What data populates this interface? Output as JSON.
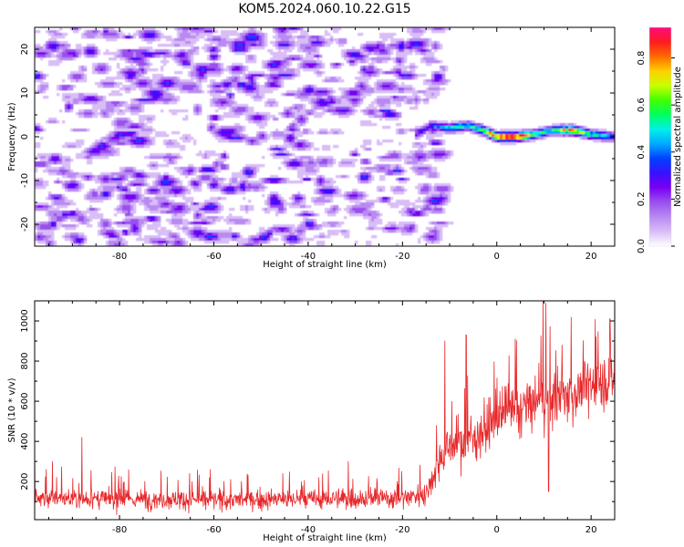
{
  "title": "KOM5.2024.060.10.22.G15",
  "colors": {
    "snr_line": "#e8282b",
    "axis": "#000000",
    "colormap": [
      "#ffffff",
      "#d9bdf7",
      "#b98af2",
      "#9a50ee",
      "#7a00f2",
      "#3a10ff",
      "#0040ff",
      "#00a8ff",
      "#00f0e8",
      "#00ff60",
      "#40ff00",
      "#c8ff00",
      "#ffd000",
      "#ff6a00",
      "#ff1a20",
      "#ff0a80"
    ]
  },
  "chart_data": [
    {
      "type": "heatmap",
      "xlabel": "Height of straight line (km)",
      "ylabel": "Frequency (Hz)",
      "xlim": [
        -98,
        25
      ],
      "ylim": [
        -25,
        25
      ],
      "xticks": [
        -80,
        -60,
        -40,
        -20,
        0,
        20
      ],
      "yticks": [
        -20,
        -10,
        0,
        10,
        20
      ],
      "colorbar": {
        "label": "Normalized spectral amplitude",
        "range": [
          0.0,
          0.93
        ],
        "ticks": [
          0.0,
          0.2,
          0.4,
          0.6,
          0.8
        ]
      },
      "noise_region_km": [
        -98,
        -13
      ],
      "signal_trace": {
        "x": [
          -17,
          -14,
          -10,
          -6,
          -3,
          0,
          4,
          8,
          12,
          16,
          20,
          25
        ],
        "frequency_hz": [
          0.5,
          2.5,
          2.0,
          2.5,
          1.5,
          0.0,
          0.0,
          0.5,
          1.5,
          1.5,
          0.5,
          0.0
        ],
        "amplitude": [
          0.25,
          0.35,
          0.45,
          0.55,
          0.6,
          0.85,
          0.9,
          0.6,
          0.55,
          0.8,
          0.5,
          0.4
        ]
      }
    },
    {
      "type": "line",
      "xlabel": "Height of straight line (km)",
      "ylabel": "SNR (10 * v/v)",
      "xlim": [
        -98,
        25
      ],
      "ylim": [
        10,
        1100
      ],
      "xticks": [
        -80,
        -60,
        -40,
        -20,
        0,
        20
      ],
      "yticks": [
        200,
        400,
        600,
        800,
        1000
      ],
      "series": [
        {
          "trend_x": [
            -98,
            -90,
            -80,
            -70,
            -60,
            -50,
            -40,
            -30,
            -20,
            -15,
            -12,
            -10,
            -8,
            -5,
            -2,
            0,
            5,
            10,
            15,
            20,
            25
          ],
          "trend_y": [
            120,
            115,
            110,
            112,
            108,
            110,
            112,
            115,
            120,
            140,
            320,
            380,
            390,
            420,
            470,
            520,
            560,
            600,
            630,
            680,
            720
          ],
          "noise_amplitude": [
            90,
            90,
            90,
            90,
            90,
            90,
            90,
            95,
            100,
            110,
            180,
            200,
            210,
            220,
            230,
            240,
            250,
            260,
            250,
            250,
            250
          ],
          "spikes": [
            {
              "x": -98,
              "y": 400
            },
            {
              "x": -88,
              "y": 420
            },
            {
              "x": -31.5,
              "y": 300
            },
            {
              "x": -11,
              "y": 900
            },
            {
              "x": -6.5,
              "y": 930
            },
            {
              "x": 9.8,
              "y": 1100
            },
            {
              "x": 24,
              "y": 1010
            },
            {
              "x": 11,
              "y": 150
            }
          ]
        }
      ]
    }
  ]
}
